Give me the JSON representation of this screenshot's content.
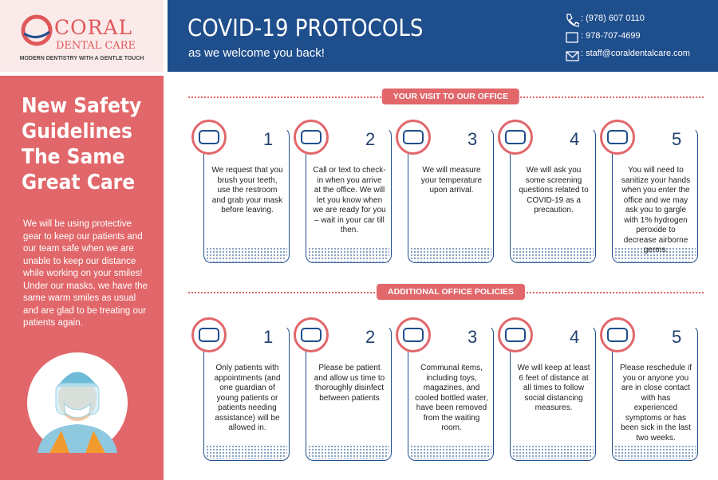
{
  "logo": {
    "name": "CORAL",
    "sub": "DENTAL CARE",
    "tagline": "MODERN DENTISTRY WITH A GENTLE TOUCH"
  },
  "header": {
    "title": "COVID-19 PROTOCOLS",
    "subtitle": "as we welcome you back!"
  },
  "contacts": [
    ": (978) 607 0110",
    ": 978-707-4699",
    ": staff@coraldentalcare.com"
  ],
  "sidebar": {
    "heading": [
      "New Safety",
      "Guidelines",
      "The Same",
      "Great Care"
    ],
    "body": "We will be using protective gear to keep our patients and our team safe when we are unable to keep our distance while working on your smiles! Under our masks, we have the same warm smiles as usual and are glad to be treating our patients again."
  },
  "sections": [
    {
      "title": "YOUR VISIT TO OUR OFFICE",
      "steps": [
        {
          "number": 1,
          "text": "We request that you brush your teeth, use the restroom and grab your mask before leaving."
        },
        {
          "number": 2,
          "text": "Call or text to check-in when you arrive at the office. We will let you know when we are ready for you – wait in your car till then."
        },
        {
          "number": 3,
          "text": "We will measure your temperature upon arrival."
        },
        {
          "number": 4,
          "text": "We will ask you some screening questions related to COVID-19 as a precaution."
        },
        {
          "number": 5,
          "text": "You will need to sanitize your hands when you enter the office and we may ask you to gargle with 1% hydrogen peroxide to decrease airborne germs."
        }
      ]
    },
    {
      "title": "ADDITIONAL OFFICE POLICIES",
      "steps": [
        {
          "number": 1,
          "text": "Only patients with appointments (and one guardian of young patients or patients needing assistance) will be allowed in."
        },
        {
          "number": 2,
          "text": "Please be patient and allow us time to thoroughly disinfect between patients"
        },
        {
          "number": 3,
          "text": "Communal items, including toys, magazines, and cooled bottled water, have been removed from the waiting room."
        },
        {
          "number": 4,
          "text": "We will keep at least 6 feet of distance at all times to follow social distancing measures."
        },
        {
          "number": 5,
          "text": "Please reschedule if you or anyone you are in close contact with has experienced symptoms or has been sick in the last two weeks."
        }
      ]
    }
  ]
}
